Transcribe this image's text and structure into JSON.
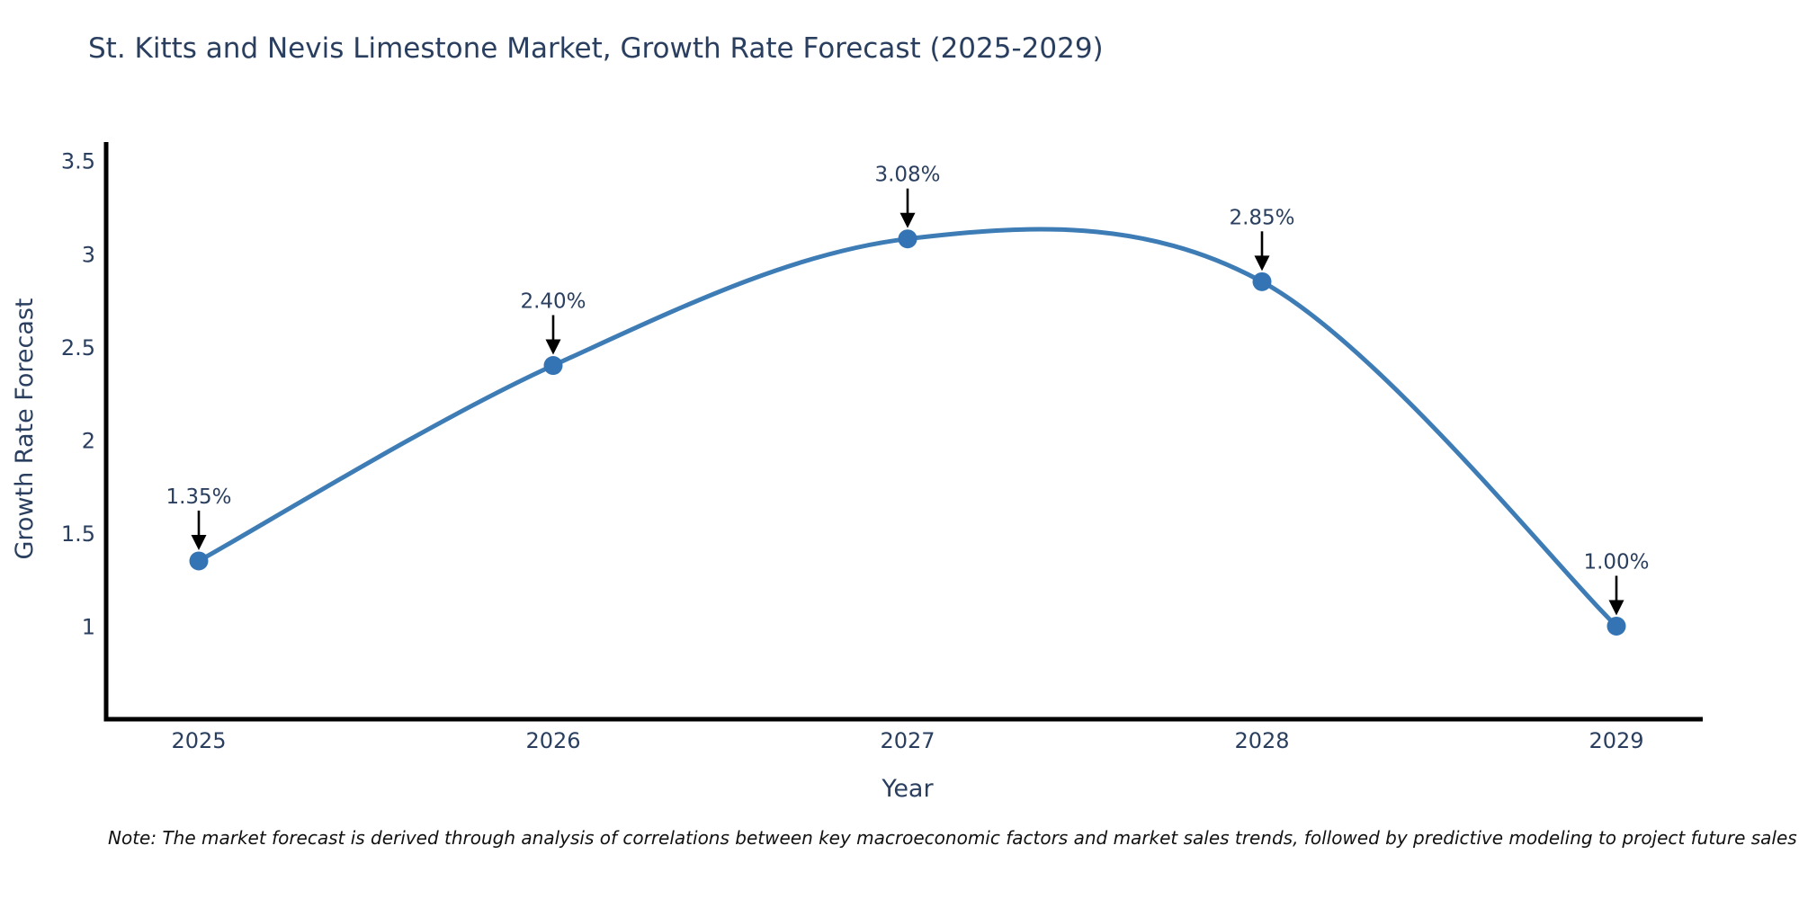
{
  "title": "St. Kitts and Nevis Limestone Market, Growth Rate Forecast (2025-2029)",
  "note": "Note: The market forecast is derived through analysis of correlations between key macroeconomic factors and market sales trends, followed by predictive modeling to project future sales",
  "chart_data": {
    "type": "line",
    "title": "St. Kitts and Nevis Limestone Market, Growth Rate Forecast (2025-2029)",
    "xlabel": "Year",
    "ylabel": "Growth Rate Forecast",
    "categories": [
      "2025",
      "2026",
      "2027",
      "2028",
      "2029"
    ],
    "series": [
      {
        "name": "Growth Rate Forecast",
        "values": [
          1.35,
          2.4,
          3.08,
          2.85,
          1.0
        ],
        "point_labels": [
          "1.35%",
          "2.40%",
          "3.08%",
          "2.85%",
          "1.00%"
        ]
      }
    ],
    "ytick_labels": [
      "1",
      "1.5",
      "2",
      "2.5",
      "3",
      "3.5"
    ],
    "ytick_values": [
      1,
      1.5,
      2,
      2.5,
      3,
      3.5
    ],
    "ylim": [
      0.5,
      3.6
    ],
    "line_shape": "spline",
    "grid": false,
    "legend_position": "none",
    "colors": {
      "line": "#3e7cb6",
      "marker": "#3474b4",
      "axis": "#000000",
      "tick_text": "#2a3f5f",
      "title_text": "#2a3f5f",
      "annotation_text": "#2a3f5f",
      "arrow": "#000000",
      "background": "#ffffff"
    }
  }
}
